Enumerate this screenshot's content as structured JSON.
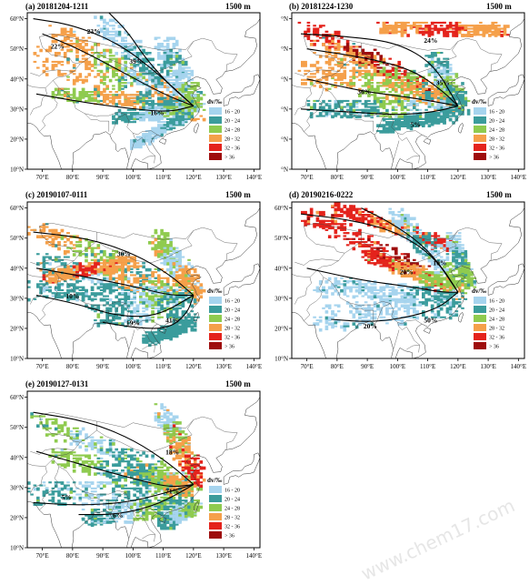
{
  "legend": {
    "title": "dv/‰",
    "classes": [
      {
        "label": "16 - 20",
        "color": "#a6d4ee"
      },
      {
        "label": "20 - 24",
        "color": "#3b9c9c"
      },
      {
        "label": "24 - 28",
        "color": "#8fcb4f"
      },
      {
        "label": "28 - 32",
        "color": "#f5a04a"
      },
      {
        "label": "32 - 36",
        "color": "#e4231c"
      },
      {
        "label": "> 36",
        "color": "#9e0d0d"
      }
    ]
  },
  "axes": {
    "lon_labels": [
      "70°E",
      "80°E",
      "90°E",
      "100°E",
      "110°E",
      "120°E",
      "130°E",
      "140°E"
    ],
    "lat_labels": [
      "10°N",
      "20°N",
      "30°N",
      "40°N",
      "50°N",
      "60°N"
    ],
    "lat_labels_hidden": [
      "°N",
      "°N",
      "°N",
      "°N",
      "°N",
      "°N"
    ]
  },
  "panels": [
    {
      "id": "a",
      "title": "(a) 20181204-1211",
      "level": "1500 m",
      "percents": [
        {
          "t": "23%",
          "lon": 87,
          "lat": 55
        },
        {
          "t": "22%",
          "lon": 75,
          "lat": 50
        },
        {
          "t": "39%",
          "lon": 101,
          "lat": 45
        },
        {
          "t": "16%",
          "lon": 108,
          "lat": 28
        }
      ]
    },
    {
      "id": "b",
      "title": "(b) 20181224-1230",
      "level": "1500 m",
      "percents": [
        {
          "t": "24%",
          "lon": 111,
          "lat": 52
        },
        {
          "t": "35%",
          "lon": 115,
          "lat": 38
        },
        {
          "t": "36%",
          "lon": 89,
          "lat": 35
        },
        {
          "t": "5%",
          "lon": 106,
          "lat": 24
        }
      ]
    },
    {
      "id": "c",
      "title": "(c) 20190107-0111",
      "level": "1500 m",
      "percents": [
        {
          "t": "30%",
          "lon": 97,
          "lat": 44
        },
        {
          "t": "10%",
          "lon": 80,
          "lat": 30
        },
        {
          "t": "19%",
          "lon": 100,
          "lat": 21
        },
        {
          "t": "41%",
          "lon": 113,
          "lat": 22
        }
      ]
    },
    {
      "id": "d",
      "title": "(d) 20190216-0222",
      "level": "1500 m",
      "percents": [
        {
          "t": "10%",
          "lon": 114,
          "lat": 41
        },
        {
          "t": "20%",
          "lon": 103,
          "lat": 38
        },
        {
          "t": "20%",
          "lon": 91,
          "lat": 20
        },
        {
          "t": "50%",
          "lon": 111,
          "lat": 22
        }
      ]
    },
    {
      "id": "e",
      "title": "(e) 20190127-0131",
      "level": "1500 m",
      "percents": [
        {
          "t": "18%",
          "lon": 113,
          "lat": 41
        },
        {
          "t": "71%",
          "lon": 113,
          "lat": 28
        },
        {
          "t": "5%",
          "lon": 78,
          "lat": 26
        },
        {
          "t": "6%",
          "lon": 95,
          "lat": 20
        }
      ]
    }
  ]
}
